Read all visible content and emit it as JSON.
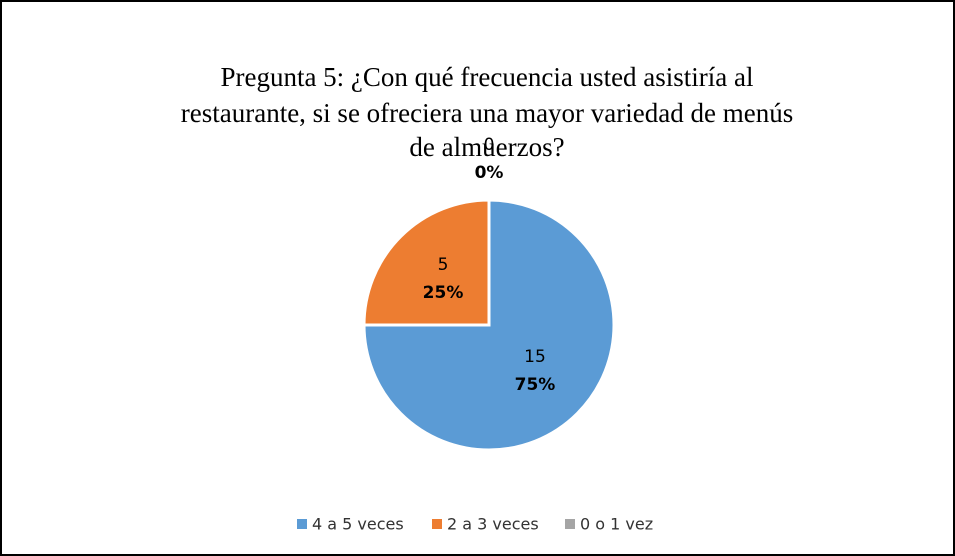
{
  "chart_data": {
    "type": "pie",
    "title": [
      "Pregunta 5: ¿Con qué frecuencia usted asistiría al",
      "restaurante, si se ofreciera una mayor variedad de menús",
      "de almuerzos?"
    ],
    "categories": [
      "4 a 5 veces",
      "2 a 3 veces",
      "0 o 1 vez"
    ],
    "values": [
      15,
      5,
      0
    ],
    "percent_labels": [
      "75%",
      "25%",
      "0%"
    ],
    "colors": [
      "#5b9bd5",
      "#ed7d31",
      "#a5a5a5"
    ],
    "legend": "bottom"
  }
}
